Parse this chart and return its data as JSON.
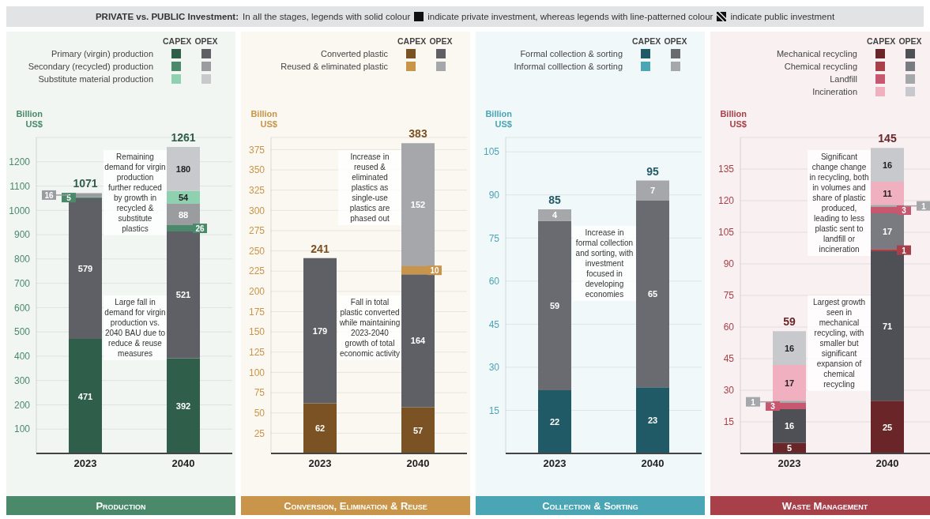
{
  "chart_data": [
    {
      "type": "other",
      "annotations": [
        "PRIVATE vs. PUBLIC Investment:",
        "In all the stages, legends with solid colour",
        "indicate private investment, whereas legends with line-patterned colour",
        "indicate public investment"
      ]
    },
    {
      "type": "bar",
      "title": "Production",
      "ylabel": "Billion US$",
      "stacked": true,
      "data_labels": true,
      "grid": "y",
      "legend": "top",
      "categories": [
        "2023",
        "2040"
      ],
      "ylim": [
        0,
        1300
      ],
      "yticks": [
        100,
        200,
        300,
        400,
        500,
        600,
        700,
        800,
        900,
        1000,
        1100,
        1200
      ],
      "totals": [
        "1071",
        "1261"
      ],
      "annotations": [
        "CAPEX",
        "OPEX",
        "Remaining demand for virgin production further reduced by growth in recycled & substitute plastics",
        "Large fall in demand for virgin production vs. 2040 BAU due to reduce & reuse measures"
      ],
      "series": [
        {
          "name": "Primary (virgin) production",
          "color": "#2f5e4a",
          "values": [
            471,
            392
          ]
        },
        {
          "color": "#5f6066",
          "values": [
            579,
            521
          ]
        },
        {
          "name": "Secondary (recycled) production",
          "color": "#4a8a6a",
          "values": [
            5,
            26
          ]
        },
        {
          "color": "#9a9ca0",
          "values": [
            16,
            88
          ]
        },
        {
          "name": "Substitute material production",
          "color": "#8fd0b0",
          "values": [
            null,
            54
          ]
        },
        {
          "color": "#c8c9cc",
          "values": [
            null,
            180
          ]
        }
      ]
    },
    {
      "type": "bar",
      "title": "Conversion, Elimination & Reuse",
      "ylabel": "Billion US$",
      "stacked": true,
      "data_labels": true,
      "grid": "y",
      "legend": "top",
      "categories": [
        "2023",
        "2040"
      ],
      "ylim": [
        0,
        390
      ],
      "yticks": [
        25,
        50,
        75,
        100,
        125,
        150,
        175,
        200,
        225,
        250,
        275,
        300,
        325,
        350,
        375
      ],
      "totals": [
        "241",
        "383"
      ],
      "annotations": [
        "CAPEX",
        "OPEX",
        "Increase in reused & eliminated plastics as single-use plastics are phased out",
        "Fall in total plastic converted while maintaining 2023-2040 growth of total economic activity"
      ],
      "series": [
        {
          "name": "Converted plastic",
          "color": "#7a5223",
          "values": [
            62,
            57
          ]
        },
        {
          "color": "#5f6066",
          "values": [
            179,
            164
          ]
        },
        {
          "name": "Reused & eliminated plastic",
          "color": "#c8954a",
          "values": [
            null,
            10
          ]
        },
        {
          "color": "#a5a7ab",
          "values": [
            null,
            152
          ]
        }
      ]
    },
    {
      "type": "bar",
      "title": "Collection & Sorting",
      "ylabel": "Billion US$",
      "stacked": true,
      "data_labels": true,
      "grid": "y",
      "legend": "top",
      "categories": [
        "2023",
        "2040"
      ],
      "ylim": [
        0,
        110
      ],
      "yticks": [
        15,
        30,
        45,
        60,
        75,
        90,
        105
      ],
      "totals": [
        "85",
        "95"
      ],
      "annotations": [
        "CAPEX",
        "OPEX",
        "Increase in formal collection and sorting, with investment focused in developing economies"
      ],
      "series": [
        {
          "name": "Formal collection & sorting",
          "color": "#1f5a66",
          "values": [
            22,
            23
          ]
        },
        {
          "color": "#6a6b70",
          "values": [
            59,
            65
          ]
        },
        {
          "name": "Informal colllection & sorting",
          "color": "#4aa5b5",
          "values": [
            null,
            null
          ]
        },
        {
          "color": "#a5a7ab",
          "values": [
            4,
            7
          ]
        }
      ]
    },
    {
      "type": "bar",
      "title": "Waste Management",
      "ylabel": "Billion US$",
      "stacked": true,
      "data_labels": true,
      "grid": "y",
      "legend": "top",
      "categories": [
        "2023",
        "2040"
      ],
      "ylim": [
        0,
        150
      ],
      "yticks": [
        15,
        30,
        45,
        60,
        75,
        90,
        105,
        120,
        135
      ],
      "totals": [
        "59",
        "145"
      ],
      "annotations": [
        "CAPEX",
        "OPEX",
        "Significant change change in recycling, both in volumes and share of plastic produced, leading to less plastic sent to landfill or incineration",
        "Largest growth seen in mechanical recycling, with smaller but significant expansion of chemical recycling"
      ],
      "series": [
        {
          "name": "Mechanical recycling",
          "color": "#6a2528",
          "values": [
            5,
            25
          ]
        },
        {
          "color": "#4f5055",
          "values": [
            16,
            71
          ]
        },
        {
          "name": "Chemical recycling",
          "color": "#a8404a",
          "values": [
            null,
            1
          ]
        },
        {
          "color": "#7a7b80",
          "values": [
            null,
            17
          ]
        },
        {
          "name": "Landfill",
          "color": "#c85870",
          "values": [
            3,
            3
          ]
        },
        {
          "color": "#a5a7ab",
          "values": [
            1,
            1
          ]
        },
        {
          "name": "Incineration",
          "color": "#f0b0c0",
          "values": [
            17,
            11
          ]
        },
        {
          "color": "#c8c9cc",
          "values": [
            16,
            16
          ]
        }
      ]
    }
  ]
}
